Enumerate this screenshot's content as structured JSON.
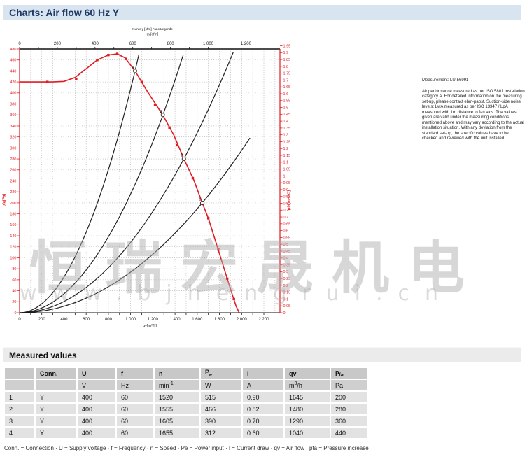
{
  "header": {
    "title": "Charts: Air flow 60 Hz Y"
  },
  "chart_data": {
    "type": "line",
    "title_note": "Kurve y [cfm] Fans Legende",
    "axes": {
      "top": {
        "label": "qv[cfm]",
        "min": 0,
        "max": 1200,
        "label_step": 200,
        "tick_step": 100,
        "unit_to_m3h": 1.699
      },
      "bottom": {
        "label": "qv[m³/h]",
        "min": 0,
        "max": 2200,
        "label_step": 200,
        "tick_step": 100
      },
      "left": {
        "label": "pfa[Pa]",
        "min": 0,
        "max": 480,
        "step": 20
      },
      "right": {
        "label": "pfa[inH2O]",
        "min": 0,
        "max": 1.95,
        "step": 0.05,
        "unit_to_pa": 249.089
      }
    },
    "fan_curve": {
      "name": "Air flow 60 Hz Y",
      "color": "#e11b22",
      "points_qv_pa": [
        [
          0,
          420
        ],
        [
          150,
          420
        ],
        [
          300,
          420
        ],
        [
          400,
          421
        ],
        [
          500,
          428
        ],
        [
          600,
          444
        ],
        [
          700,
          460
        ],
        [
          800,
          469
        ],
        [
          880,
          471
        ],
        [
          950,
          464
        ],
        [
          1040,
          440
        ],
        [
          1150,
          403
        ],
        [
          1290,
          360
        ],
        [
          1390,
          323
        ],
        [
          1480,
          280
        ],
        [
          1570,
          241
        ],
        [
          1645,
          200
        ],
        [
          1700,
          172
        ],
        [
          1750,
          140
        ],
        [
          1800,
          108
        ],
        [
          1850,
          75
        ],
        [
          1900,
          43
        ],
        [
          1950,
          12
        ],
        [
          1978,
          0
        ]
      ],
      "marker_points": [
        [
          250,
          420
        ],
        [
          510,
          425
        ],
        [
          700,
          460
        ],
        [
          800,
          469
        ],
        [
          880,
          471
        ],
        [
          960,
          462
        ],
        [
          1100,
          420
        ],
        [
          1220,
          378
        ],
        [
          1350,
          337
        ],
        [
          1420,
          305
        ],
        [
          1560,
          245
        ],
        [
          1700,
          172
        ],
        [
          1790,
          115
        ],
        [
          1870,
          62
        ],
        [
          1930,
          25
        ]
      ]
    },
    "operating_points": [
      {
        "label": "4",
        "qv": 1040,
        "pfa": 440
      },
      {
        "label": "3",
        "qv": 1290,
        "pfa": 360
      },
      {
        "label": "2",
        "qv": 1480,
        "pfa": 280
      },
      {
        "label": "1",
        "qv": 1645,
        "pfa": 200
      }
    ],
    "system_curves": [
      {
        "k": 0.000407,
        "qv_end": 1086
      },
      {
        "k": 0.000216,
        "qv_end": 1490
      },
      {
        "k": 0.000128,
        "qv_end": 1940
      },
      {
        "k": 7.39e-05,
        "qv_end": 2080
      }
    ]
  },
  "measurement_note": {
    "title": "Measurement: LU-56991",
    "body": "Air performance measured as per ISO 5801 Installation category A. For detailed information on the measuring set-up, please contact ebm-papst. Suction-side noise levels: LwA measured as per ISO 13347 / LpA measured with 1m distance to fan axis. The values given are valid under the measuring conditions mentioned above and may vary according to the actual installation situation. With any deviation from the standard set-up, the specific values have to be checked and reviewed with the unit installed."
  },
  "watermark": {
    "cjk": "恒瑞宏晟机电",
    "url": "www.bjhengrui.cn"
  },
  "measured_values": {
    "title": "Measured values",
    "columns": [
      {
        "t": ""
      },
      {
        "t": "Conn."
      },
      {
        "t": "U"
      },
      {
        "t": "f"
      },
      {
        "t": "n"
      },
      {
        "t": "P",
        "sub": "e"
      },
      {
        "t": "I"
      },
      {
        "t": "qv"
      },
      {
        "t": "p",
        "sub": "fa"
      }
    ],
    "units": [
      {
        "t": ""
      },
      {
        "t": ""
      },
      {
        "t": "V"
      },
      {
        "t": "Hz"
      },
      {
        "t": "min",
        "sup": "-1"
      },
      {
        "t": "W"
      },
      {
        "t": "A"
      },
      {
        "t": "m",
        "sup": "3",
        "tail": "/h"
      },
      {
        "t": "Pa"
      }
    ],
    "rows": [
      [
        "1",
        "Y",
        "400",
        "60",
        "1520",
        "515",
        "0.90",
        "1645",
        "200"
      ],
      [
        "2",
        "Y",
        "400",
        "60",
        "1555",
        "466",
        "0.82",
        "1480",
        "280"
      ],
      [
        "3",
        "Y",
        "400",
        "60",
        "1605",
        "390",
        "0.70",
        "1290",
        "360"
      ],
      [
        "4",
        "Y",
        "400",
        "60",
        "1655",
        "312",
        "0.60",
        "1040",
        "440"
      ]
    ]
  },
  "footer_legend": "Conn. = Connection · U = Supply voltage · f = Frequency · n = Speed · Pe = Power input · I = Current draw · qv = Air flow · pfa = Pressure increase",
  "colors": {
    "accent_red": "#e11b22",
    "header_bg": "#d9e4f1",
    "header_text": "#1f3864",
    "curve_black": "#222222"
  }
}
